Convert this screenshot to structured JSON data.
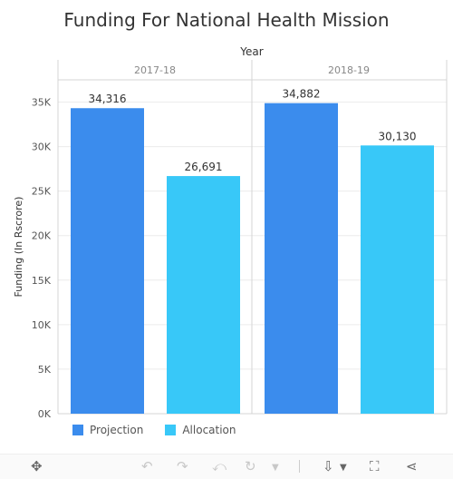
{
  "chart_data": {
    "type": "bar",
    "title": "Funding For National Health Mission",
    "column_header": "Year",
    "categories": [
      "2017-18",
      "2018-19"
    ],
    "series": [
      {
        "name": "Projection",
        "color": "#3b8ced",
        "values": [
          34316,
          34882
        ],
        "labels": [
          "34,316",
          "34,882"
        ]
      },
      {
        "name": "Allocation",
        "color": "#38c8f8",
        "values": [
          26691,
          30130
        ],
        "labels": [
          "26,691",
          "30,130"
        ]
      }
    ],
    "ylabel": "Funding (In Rscrore)",
    "yticks": [
      0,
      5000,
      10000,
      15000,
      20000,
      25000,
      30000,
      35000
    ],
    "ytick_labels": [
      "0K",
      "5K",
      "10K",
      "15K",
      "20K",
      "25K",
      "30K",
      "35K"
    ],
    "ylim": [
      0,
      37500
    ],
    "grid": true,
    "legend_position": "bottom-left"
  },
  "toolbar": {
    "icons": [
      "move-icon",
      "undo-icon",
      "redo-icon",
      "revert-icon",
      "refresh-icon",
      "download-icon",
      "fullscreen-icon",
      "share-icon"
    ]
  }
}
